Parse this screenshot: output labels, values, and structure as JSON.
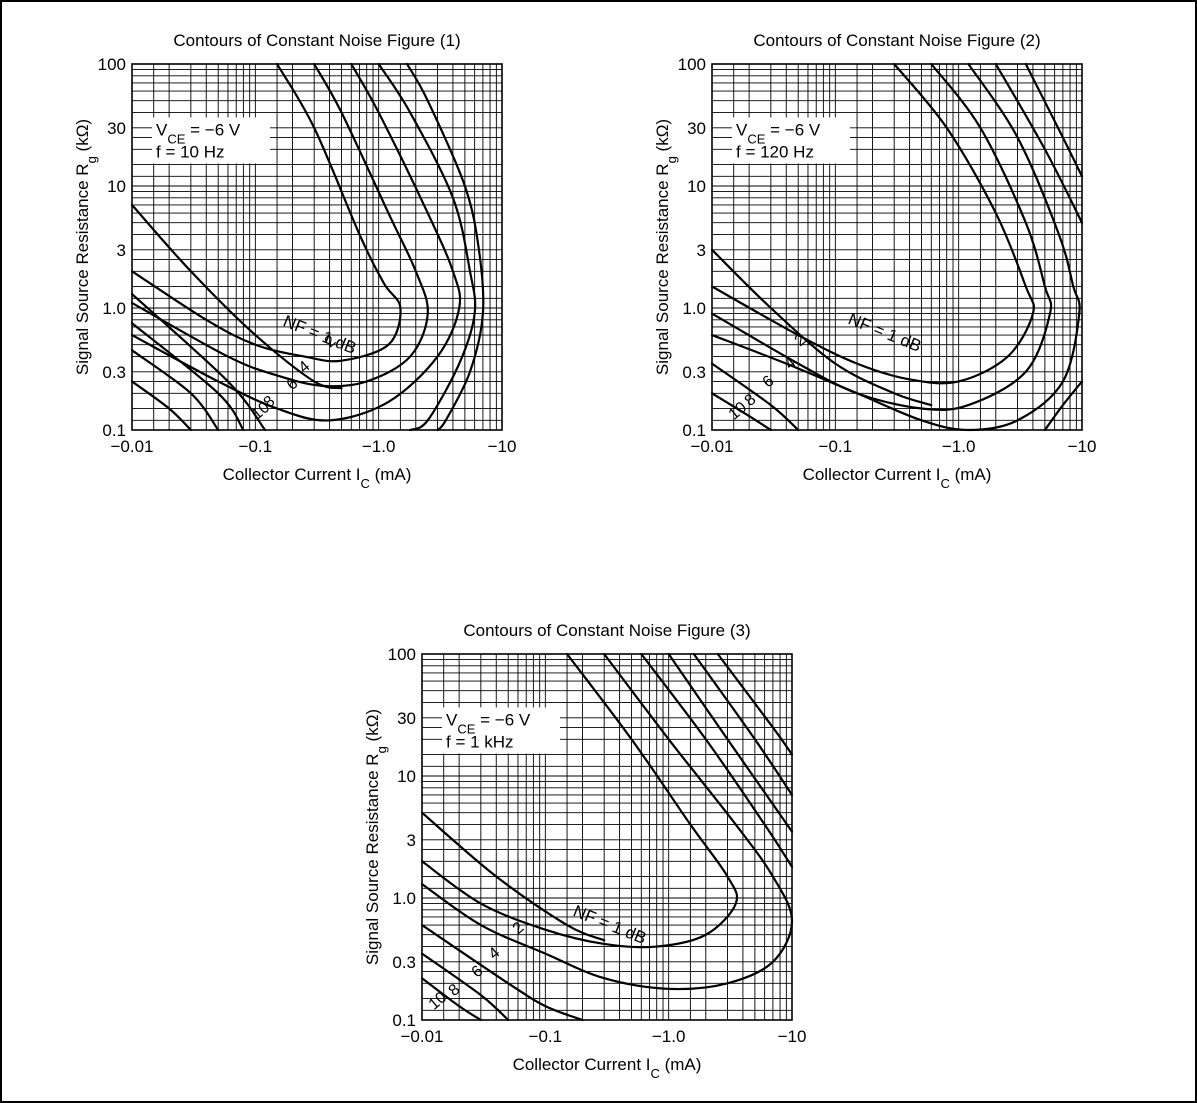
{
  "chart_data": [
    {
      "type": "line",
      "title": "Contours of Constant Noise Figure (1)",
      "xlabel": "Collector Current  I",
      "xlabel_sub": "C",
      "xlabel_unit": " (mA)",
      "ylabel": "Signal Source Resistance  R",
      "ylabel_sub": "g",
      "ylabel_unit": " (kΩ)",
      "x_scale": "log",
      "y_scale": "log",
      "xlim": [
        -0.01,
        -10
      ],
      "ylim": [
        0.1,
        100
      ],
      "x_ticks": [
        "−0.01",
        "−0.1",
        "−1.0",
        "−10"
      ],
      "y_ticks": [
        "100",
        "30",
        "10",
        "3",
        "1.0",
        "0.3",
        "0.1"
      ],
      "grid": true,
      "conditions": {
        "vce_prefix": "V",
        "vce_sub": "CE",
        "vce_value": " = −6 V",
        "freq": "f = 10 Hz"
      },
      "label_nf": "NF = 1 dB",
      "series": [
        {
          "name": "1",
          "points": [
            [
              -0.15,
              100
            ],
            [
              -0.3,
              30
            ],
            [
              -0.7,
              4
            ],
            [
              -1.1,
              1.6
            ],
            [
              -1.5,
              1.0
            ],
            [
              -1.2,
              0.5
            ],
            [
              -0.5,
              0.37
            ],
            [
              -0.25,
              0.4
            ],
            [
              -0.1,
              0.5
            ],
            [
              -0.04,
              0.8
            ],
            [
              -0.01,
              2.0
            ]
          ]
        },
        {
          "name": "2",
          "points": [
            [
              -0.3,
              100
            ],
            [
              -0.5,
              40
            ],
            [
              -1.2,
              6
            ],
            [
              -2.0,
              2.0
            ],
            [
              -2.5,
              0.9
            ],
            [
              -1.8,
              0.4
            ],
            [
              -0.8,
              0.25
            ],
            [
              -0.35,
              0.23
            ],
            [
              -0.15,
              0.28
            ],
            [
              -0.06,
              0.4
            ],
            [
              -0.01,
              1.1
            ]
          ]
        },
        {
          "name": "4",
          "points": [
            [
              -0.6,
              100
            ],
            [
              -1.0,
              40
            ],
            [
              -2.5,
              6
            ],
            [
              -4.0,
              2.0
            ],
            [
              -4.5,
              1.0
            ],
            [
              -3.0,
              0.4
            ],
            [
              -1.2,
              0.17
            ],
            [
              -0.4,
              0.12
            ],
            [
              -0.15,
              0.15
            ],
            [
              -0.05,
              0.25
            ],
            [
              -0.01,
              0.6
            ]
          ]
        },
        {
          "name": "6",
          "points": [
            [
              -1.0,
              100
            ],
            [
              -1.8,
              40
            ],
            [
              -4.0,
              8
            ],
            [
              -5.5,
              2.0
            ],
            [
              -6.0,
              0.9
            ],
            [
              -4.5,
              0.35
            ],
            [
              -2.5,
              0.12
            ],
            [
              -1.8,
              0.1
            ]
          ]
        },
        {
          "name": "8",
          "points": [
            [
              -1.7,
              100
            ],
            [
              -2.5,
              50
            ],
            [
              -5.0,
              10
            ],
            [
              -6.5,
              3.0
            ],
            [
              -7.0,
              0.9
            ],
            [
              -5.5,
              0.3
            ],
            [
              -3.5,
              0.12
            ],
            [
              -3.0,
              0.1
            ]
          ]
        },
        {
          "name": "10_a",
          "points": [
            [
              -0.01,
              0.25
            ],
            [
              -0.02,
              0.15
            ],
            [
              -0.03,
              0.1
            ]
          ]
        },
        {
          "name": "10_b",
          "points": [
            [
              -0.01,
              0.45
            ],
            [
              -0.03,
              0.2
            ],
            [
              -0.05,
              0.1
            ]
          ]
        },
        {
          "name": "10_c",
          "points": [
            [
              -0.01,
              0.75
            ],
            [
              -0.05,
              0.2
            ],
            [
              -0.08,
              0.1
            ]
          ]
        },
        {
          "name": "10_d",
          "points": [
            [
              -0.01,
              1.3
            ],
            [
              -0.06,
              0.25
            ],
            [
              -0.12,
              0.1
            ]
          ]
        },
        {
          "name": "10_e",
          "points": [
            [
              -0.01,
              7.0
            ],
            [
              -0.03,
              2.0
            ],
            [
              -0.1,
              0.6
            ],
            [
              -0.3,
              0.25
            ],
            [
              -0.5,
              0.22
            ]
          ]
        }
      ],
      "contour_labels": [
        "10",
        "8",
        "6",
        "4",
        "2"
      ]
    },
    {
      "type": "line",
      "title": "Contours of Constant Noise Figure (2)",
      "xlabel": "Collector Current  I",
      "xlabel_sub": "C",
      "xlabel_unit": " (mA)",
      "ylabel": "Signal Source Resistance  R",
      "ylabel_sub": "g",
      "ylabel_unit": " (kΩ)",
      "x_scale": "log",
      "y_scale": "log",
      "xlim": [
        -0.01,
        -10
      ],
      "ylim": [
        0.1,
        100
      ],
      "x_ticks": [
        "−0.01",
        "−0.1",
        "−1.0",
        "−10"
      ],
      "y_ticks": [
        "100",
        "30",
        "10",
        "3",
        "1.0",
        "0.3",
        "0.1"
      ],
      "grid": true,
      "conditions": {
        "vce_prefix": "V",
        "vce_sub": "CE",
        "vce_value": " = −6 V",
        "freq": "f = 120 Hz"
      },
      "label_nf": "NF = 1 dB",
      "series": [
        {
          "name": "1",
          "points": [
            [
              -0.3,
              100
            ],
            [
              -0.8,
              30
            ],
            [
              -2.0,
              6
            ],
            [
              -3.5,
              1.5
            ],
            [
              -4.0,
              0.9
            ],
            [
              -2.5,
              0.4
            ],
            [
              -1.0,
              0.25
            ],
            [
              -0.4,
              0.26
            ],
            [
              -0.15,
              0.35
            ],
            [
              -0.05,
              0.6
            ],
            [
              -0.01,
              1.5
            ]
          ]
        },
        {
          "name": "2",
          "points": [
            [
              -0.6,
              100
            ],
            [
              -1.5,
              30
            ],
            [
              -3.5,
              5
            ],
            [
              -5.0,
              1.5
            ],
            [
              -5.5,
              0.9
            ],
            [
              -3.5,
              0.3
            ],
            [
              -1.2,
              0.16
            ],
            [
              -0.5,
              0.15
            ],
            [
              -0.15,
              0.2
            ],
            [
              -0.05,
              0.35
            ],
            [
              -0.01,
              0.9
            ]
          ]
        },
        {
          "name": "4",
          "points": [
            [
              -1.2,
              100
            ],
            [
              -3.0,
              25
            ],
            [
              -6.5,
              4
            ],
            [
              -8.5,
              1.5
            ],
            [
              -9.5,
              0.9
            ],
            [
              -7.0,
              0.25
            ],
            [
              -3.0,
              0.12
            ],
            [
              -1.2,
              0.1
            ],
            [
              -0.5,
              0.12
            ],
            [
              -0.15,
              0.2
            ],
            [
              -0.04,
              0.35
            ],
            [
              -0.01,
              0.6
            ]
          ]
        },
        {
          "name": "6",
          "points": [
            [
              -2.0,
              100
            ],
            [
              -5.0,
              20
            ],
            [
              -10.0,
              5
            ]
          ]
        },
        {
          "name": "8",
          "points": [
            [
              -3.5,
              100
            ],
            [
              -7.0,
              25
            ],
            [
              -10.0,
              12
            ]
          ]
        },
        {
          "name": "10_a",
          "points": [
            [
              -0.01,
              0.2
            ],
            [
              -0.02,
              0.13
            ],
            [
              -0.03,
              0.1
            ]
          ]
        },
        {
          "name": "10_b",
          "points": [
            [
              -0.01,
              0.35
            ],
            [
              -0.03,
              0.16
            ],
            [
              -0.05,
              0.1
            ]
          ]
        },
        {
          "name": "10_c",
          "points": [
            [
              -0.01,
              3.0
            ],
            [
              -0.03,
              1.0
            ],
            [
              -0.1,
              0.35
            ],
            [
              -0.3,
              0.2
            ],
            [
              -0.6,
              0.16
            ]
          ]
        },
        {
          "name": "10_d",
          "points": [
            [
              -10.0,
              0.25
            ],
            [
              -7.0,
              0.16
            ],
            [
              -5.0,
              0.1
            ]
          ]
        }
      ],
      "contour_labels": [
        "10",
        "8",
        "6",
        "4",
        "2"
      ]
    },
    {
      "type": "line",
      "title": "Contours of Constant Noise Figure (3)",
      "xlabel": "Collector Current  I",
      "xlabel_sub": "C",
      "xlabel_unit": " (mA)",
      "ylabel": "Signal Source Resistance  R",
      "ylabel_sub": "g",
      "ylabel_unit": " (kΩ)",
      "x_scale": "log",
      "y_scale": "log",
      "xlim": [
        -0.01,
        -10
      ],
      "ylim": [
        0.1,
        100
      ],
      "x_ticks": [
        "−0.01",
        "−0.1",
        "−1.0",
        "−10"
      ],
      "y_ticks": [
        "100",
        "30",
        "10",
        "3",
        "1.0",
        "0.3",
        "0.1"
      ],
      "grid": true,
      "conditions": {
        "vce_prefix": "V",
        "vce_sub": "CE",
        "vce_value": " = −6 V",
        "freq": "f = 1 kHz"
      },
      "label_nf": "NF = 1 dB",
      "series": [
        {
          "name": "1",
          "points": [
            [
              -0.15,
              100
            ],
            [
              -0.5,
              20
            ],
            [
              -1.5,
              4
            ],
            [
              -3.0,
              1.5
            ],
            [
              -3.5,
              0.9
            ],
            [
              -2.0,
              0.5
            ],
            [
              -0.8,
              0.4
            ],
            [
              -0.3,
              0.42
            ],
            [
              -0.1,
              0.55
            ],
            [
              -0.03,
              0.9
            ],
            [
              -0.01,
              2.0
            ]
          ]
        },
        {
          "name": "2",
          "points": [
            [
              -0.3,
              100
            ],
            [
              -1.0,
              20
            ],
            [
              -3.5,
              4
            ],
            [
              -7.0,
              1.5
            ],
            [
              -10.0,
              0.65
            ],
            [
              -7.0,
              0.3
            ],
            [
              -3.0,
              0.2
            ],
            [
              -1.0,
              0.18
            ],
            [
              -0.3,
              0.22
            ],
            [
              -0.1,
              0.35
            ],
            [
              -0.03,
              0.6
            ],
            [
              -0.01,
              1.3
            ]
          ]
        },
        {
          "name": "4",
          "points": [
            [
              -0.6,
              100
            ],
            [
              -2.0,
              20
            ],
            [
              -6.0,
              4
            ],
            [
              -10.0,
              1.8
            ]
          ]
        },
        {
          "name": "6",
          "points": [
            [
              -1.0,
              100
            ],
            [
              -3.0,
              20
            ],
            [
              -10.0,
              3.5
            ]
          ]
        },
        {
          "name": "8",
          "points": [
            [
              -1.6,
              100
            ],
            [
              -5.0,
              20
            ],
            [
              -10.0,
              7
            ]
          ]
        },
        {
          "name": "10_a",
          "points": [
            [
              -2.5,
              100
            ],
            [
              -7.0,
              25
            ],
            [
              -10.0,
              15
            ]
          ]
        },
        {
          "name": "10_b",
          "points": [
            [
              -0.01,
              0.22
            ],
            [
              -0.02,
              0.13
            ],
            [
              -0.03,
              0.1
            ]
          ]
        },
        {
          "name": "10_c",
          "points": [
            [
              -0.01,
              0.35
            ],
            [
              -0.03,
              0.16
            ],
            [
              -0.05,
              0.1
            ]
          ]
        },
        {
          "name": "10_d",
          "points": [
            [
              -0.01,
              0.6
            ],
            [
              -0.05,
              0.2
            ],
            [
              -0.1,
              0.13
            ],
            [
              -0.2,
              0.1
            ]
          ]
        },
        {
          "name": "10_e",
          "points": [
            [
              -0.01,
              5.0
            ],
            [
              -0.04,
              1.5
            ],
            [
              -0.15,
              0.6
            ],
            [
              -0.3,
              0.45
            ]
          ]
        }
      ],
      "contour_labels": [
        "10",
        "8",
        "6",
        "4",
        "2"
      ]
    }
  ]
}
